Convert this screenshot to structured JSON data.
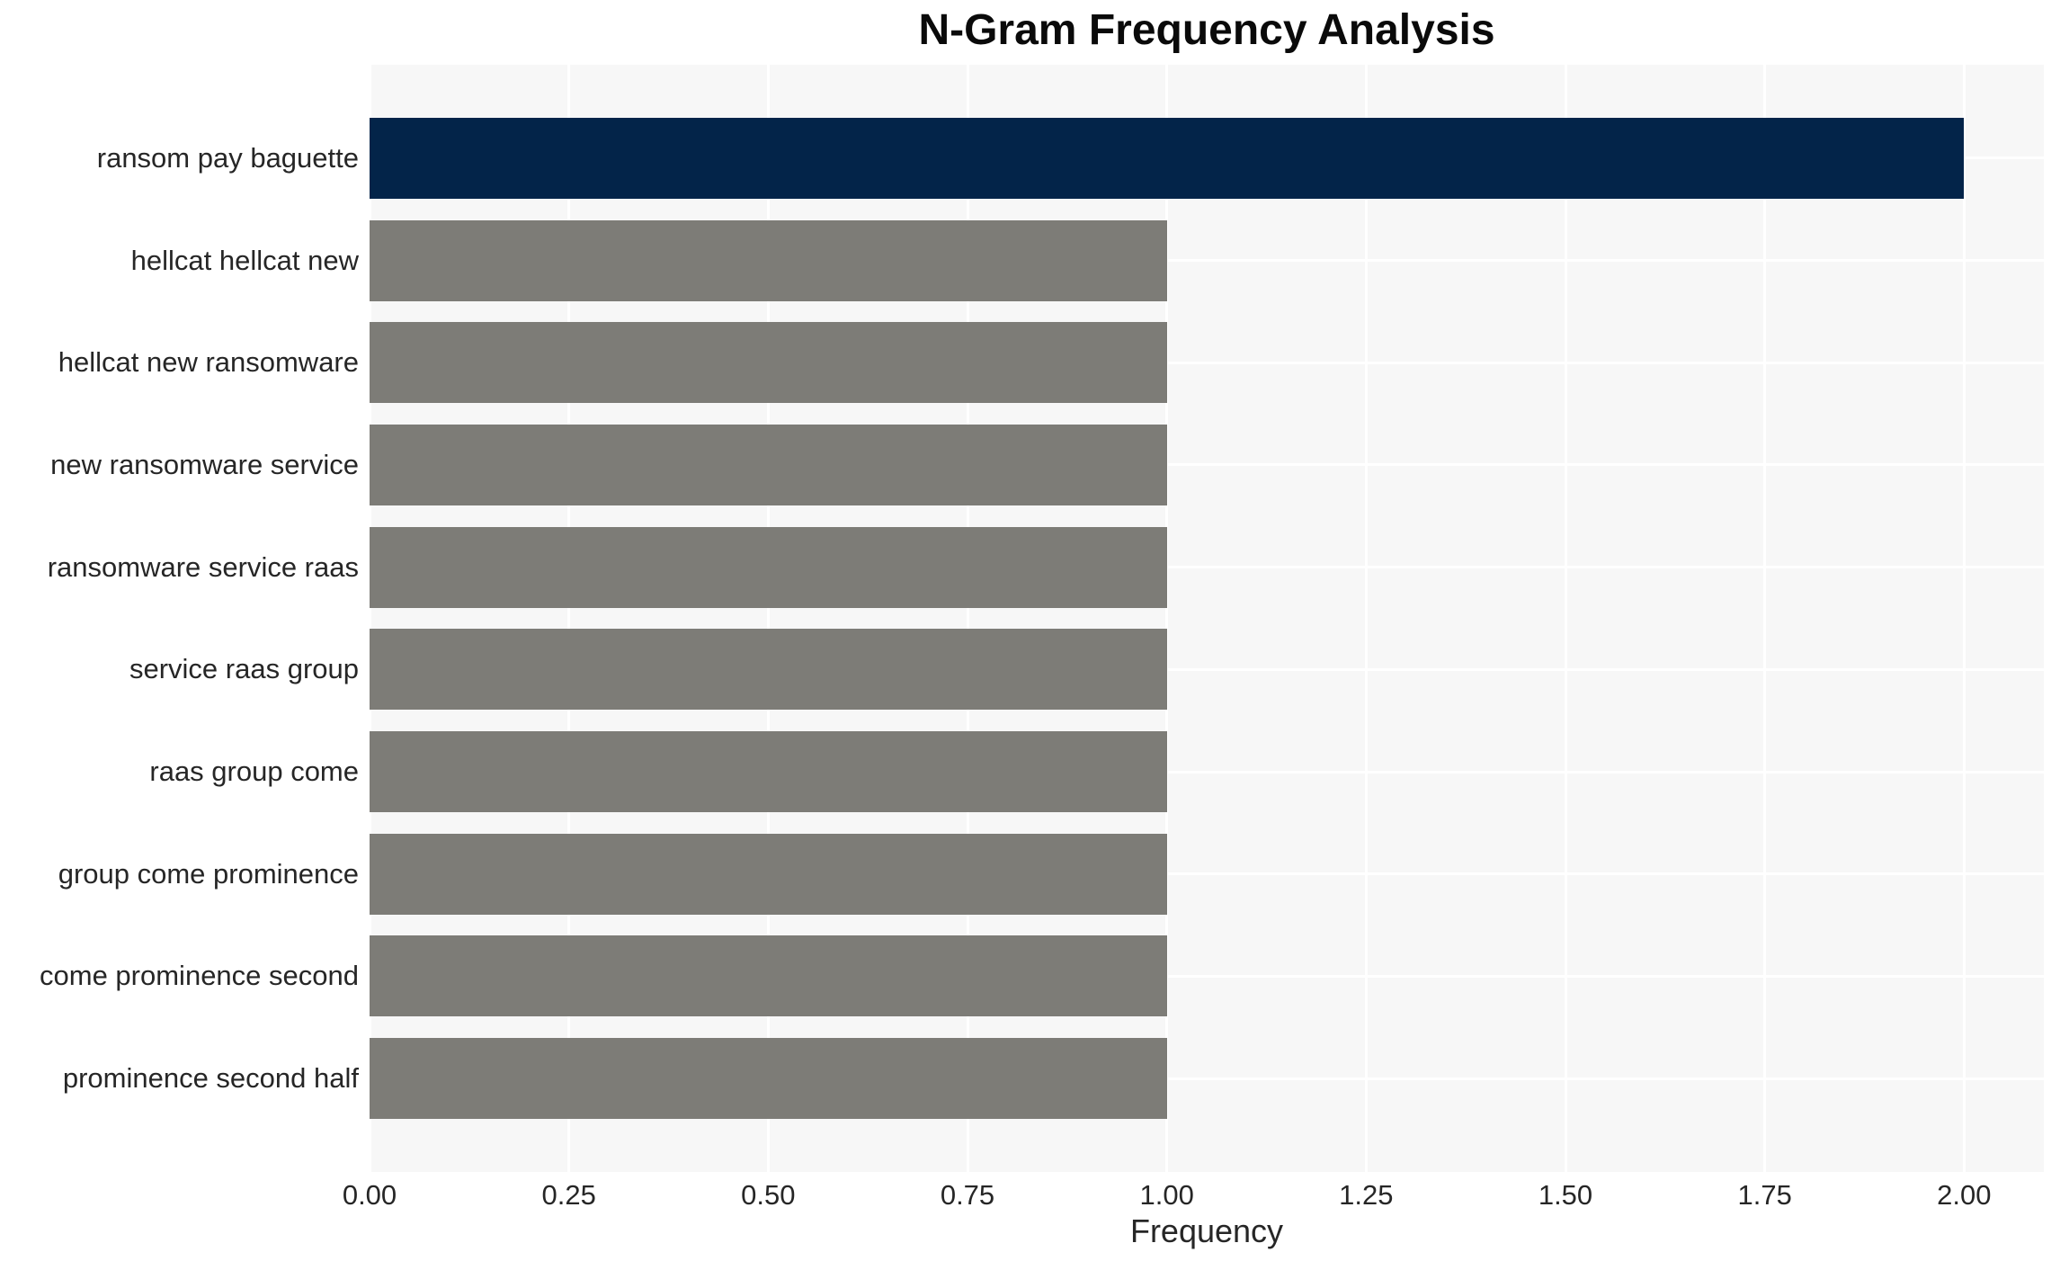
{
  "chart_data": {
    "type": "bar",
    "orientation": "horizontal",
    "title": "N-Gram Frequency Analysis",
    "xlabel": "Frequency",
    "ylabel": "",
    "categories": [
      "ransom pay baguette",
      "hellcat hellcat new",
      "hellcat new ransomware",
      "new ransomware service",
      "ransomware service raas",
      "service raas group",
      "raas group come",
      "group come prominence",
      "come prominence second",
      "prominence second half"
    ],
    "values": [
      2.0,
      1.0,
      1.0,
      1.0,
      1.0,
      1.0,
      1.0,
      1.0,
      1.0,
      1.0
    ],
    "bar_colors": [
      "#032449",
      "#7d7c77",
      "#7d7c77",
      "#7d7c77",
      "#7d7c77",
      "#7d7c77",
      "#7d7c77",
      "#7d7c77",
      "#7d7c77",
      "#7d7c77"
    ],
    "xlim": [
      0,
      2.1
    ],
    "xticks": [
      0,
      0.25,
      0.5,
      0.75,
      1.0,
      1.25,
      1.5,
      1.75,
      2.0
    ],
    "xtick_labels": [
      "0.00",
      "0.25",
      "0.50",
      "0.75",
      "1.00",
      "1.25",
      "1.50",
      "1.75",
      "2.00"
    ],
    "grid": true,
    "legend": false,
    "colors": {
      "highlight_bar": "#032449",
      "default_bar": "#7d7c77",
      "plot_background": "#f7f7f7",
      "gridline": "#ffffff",
      "text": "#262626",
      "title_text": "#0a0a0a",
      "figure_background": "#ffffff"
    }
  }
}
